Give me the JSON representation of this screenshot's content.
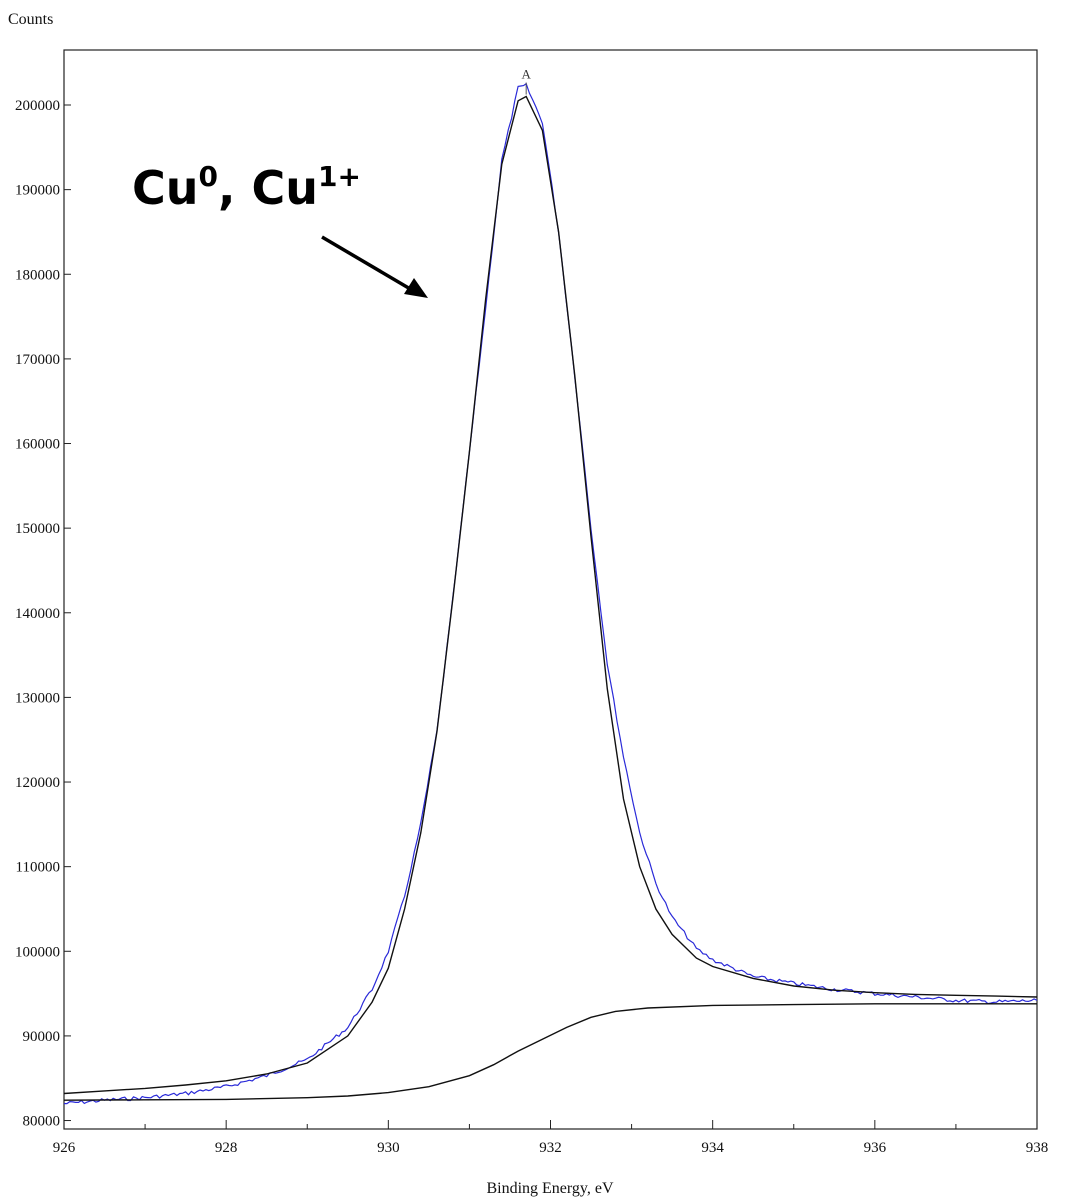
{
  "chart_data": {
    "type": "line",
    "title": "",
    "xlabel": "Binding Energy, eV",
    "ylabel": "Counts",
    "xlim": [
      926,
      938
    ],
    "ylim": [
      79000,
      206500
    ],
    "x_ticks": [
      926,
      928,
      930,
      932,
      934,
      936,
      938
    ],
    "y_ticks": [
      80000,
      90000,
      100000,
      110000,
      120000,
      130000,
      140000,
      150000,
      160000,
      170000,
      180000,
      190000,
      200000
    ],
    "grid": false,
    "annotation": {
      "main": "Cu",
      "sup1": "0",
      "sep": ", Cu",
      "sup2": "1+"
    },
    "peak_label": "A",
    "series": [
      {
        "color": "#2a2ad8",
        "style": "raw-data",
        "points": [
          [
            926,
            82000
          ],
          [
            926.5,
            82400
          ],
          [
            927,
            82700
          ],
          [
            927.5,
            83200
          ],
          [
            928,
            84000
          ],
          [
            928.5,
            85300
          ],
          [
            929,
            87200
          ],
          [
            929.5,
            91000
          ],
          [
            929.8,
            95500
          ],
          [
            930,
            100000
          ],
          [
            930.2,
            106500
          ],
          [
            930.4,
            115000
          ],
          [
            930.6,
            126000
          ],
          [
            930.8,
            142000
          ],
          [
            931,
            159000
          ],
          [
            931.2,
            176000
          ],
          [
            931.4,
            193500
          ],
          [
            931.6,
            202000
          ],
          [
            931.7,
            202300
          ],
          [
            931.9,
            198000
          ],
          [
            932.1,
            185000
          ],
          [
            932.3,
            168000
          ],
          [
            932.5,
            150000
          ],
          [
            932.7,
            134000
          ],
          [
            932.9,
            123000
          ],
          [
            933.1,
            114000
          ],
          [
            933.3,
            108000
          ],
          [
            933.5,
            104000
          ],
          [
            933.8,
            100300
          ],
          [
            934,
            99000
          ],
          [
            934.5,
            97000
          ],
          [
            935,
            96200
          ],
          [
            935.5,
            95500
          ],
          [
            936,
            95000
          ],
          [
            936.5,
            94600
          ],
          [
            937,
            94200
          ],
          [
            937.5,
            94000
          ],
          [
            938,
            94200
          ]
        ]
      },
      {
        "color": "#111111",
        "style": "envelope-fit",
        "points": [
          [
            926,
            83200
          ],
          [
            926.5,
            83500
          ],
          [
            927,
            83800
          ],
          [
            927.5,
            84200
          ],
          [
            928,
            84700
          ],
          [
            928.5,
            85500
          ],
          [
            929,
            86800
          ],
          [
            929.5,
            90000
          ],
          [
            929.8,
            94000
          ],
          [
            930,
            98000
          ],
          [
            930.2,
            105000
          ],
          [
            930.4,
            114000
          ],
          [
            930.6,
            126000
          ],
          [
            930.8,
            142000
          ],
          [
            931,
            159000
          ],
          [
            931.2,
            177000
          ],
          [
            931.4,
            193000
          ],
          [
            931.6,
            200500
          ],
          [
            931.7,
            201000
          ],
          [
            931.9,
            197000
          ],
          [
            932.1,
            185000
          ],
          [
            932.3,
            168000
          ],
          [
            932.5,
            149000
          ],
          [
            932.7,
            131000
          ],
          [
            932.9,
            118000
          ],
          [
            933.1,
            110000
          ],
          [
            933.3,
            105000
          ],
          [
            933.5,
            102000
          ],
          [
            933.8,
            99200
          ],
          [
            934,
            98200
          ],
          [
            934.5,
            96800
          ],
          [
            935,
            95900
          ],
          [
            935.5,
            95400
          ],
          [
            936,
            95100
          ],
          [
            936.5,
            94900
          ],
          [
            937,
            94800
          ],
          [
            937.5,
            94700
          ],
          [
            938,
            94600
          ]
        ]
      },
      {
        "color": "#111111",
        "style": "background",
        "points": [
          [
            926,
            82400
          ],
          [
            927,
            82450
          ],
          [
            928,
            82500
          ],
          [
            929,
            82700
          ],
          [
            929.5,
            82900
          ],
          [
            930,
            83300
          ],
          [
            930.5,
            84000
          ],
          [
            931,
            85300
          ],
          [
            931.3,
            86600
          ],
          [
            931.6,
            88200
          ],
          [
            931.9,
            89600
          ],
          [
            932.2,
            91000
          ],
          [
            932.5,
            92200
          ],
          [
            932.8,
            92900
          ],
          [
            933.2,
            93300
          ],
          [
            934,
            93600
          ],
          [
            935,
            93700
          ],
          [
            936,
            93800
          ],
          [
            937,
            93800
          ],
          [
            938,
            93800
          ]
        ]
      }
    ]
  }
}
